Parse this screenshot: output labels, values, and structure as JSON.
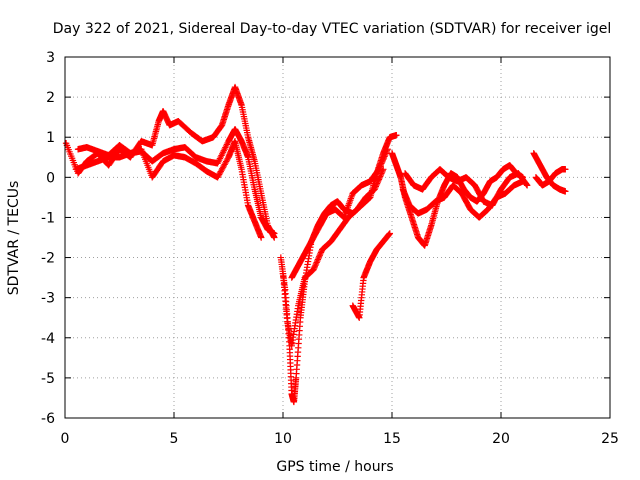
{
  "chart_data": {
    "type": "scatter",
    "title": "Day 322 of 2021, Sidereal Day-to-day VTEC variation (SDTVAR) for receiver igel",
    "xlabel": "GPS time / hours",
    "ylabel": "SDTVAR / TECUs",
    "xlim": [
      0,
      25
    ],
    "ylim": [
      -6,
      3
    ],
    "xticks": [
      0,
      5,
      10,
      15,
      20,
      25
    ],
    "yticks": [
      -6,
      -5,
      -4,
      -3,
      -2,
      -1,
      0,
      1,
      2,
      3
    ],
    "grid": true,
    "marker": "+",
    "color": "#ff0000",
    "series": [
      {
        "points": [
          [
            0.05,
            0.85
          ],
          [
            0.6,
            0.1
          ],
          [
            1.0,
            0.4
          ],
          [
            1.5,
            0.6
          ],
          [
            2.0,
            0.3
          ],
          [
            2.5,
            0.7
          ],
          [
            3.0,
            0.5
          ],
          [
            3.5,
            0.9
          ],
          [
            4.0,
            0.8
          ],
          [
            4.3,
            1.4
          ],
          [
            4.5,
            1.65
          ],
          [
            4.8,
            1.3
          ],
          [
            5.2,
            1.4
          ],
          [
            5.8,
            1.1
          ],
          [
            6.3,
            0.9
          ],
          [
            6.8,
            1.0
          ],
          [
            7.2,
            1.3
          ],
          [
            7.5,
            1.8
          ],
          [
            7.8,
            2.25
          ],
          [
            8.1,
            1.8
          ],
          [
            8.4,
            1.0
          ],
          [
            8.7,
            0.4
          ],
          [
            9.0,
            -0.4
          ],
          [
            9.3,
            -1.2
          ],
          [
            9.6,
            -1.5
          ]
        ]
      },
      {
        "points": [
          [
            0.6,
            0.7
          ],
          [
            1.0,
            0.75
          ],
          [
            1.5,
            0.65
          ],
          [
            2.0,
            0.55
          ],
          [
            2.5,
            0.8
          ],
          [
            3.0,
            0.6
          ],
          [
            3.5,
            0.65
          ],
          [
            4.0,
            0.4
          ],
          [
            4.5,
            0.6
          ],
          [
            5.0,
            0.7
          ],
          [
            5.5,
            0.75
          ],
          [
            6.0,
            0.5
          ],
          [
            6.5,
            0.4
          ],
          [
            7.0,
            0.35
          ],
          [
            7.5,
            0.9
          ],
          [
            7.8,
            1.2
          ],
          [
            8.1,
            0.9
          ],
          [
            8.4,
            0.5
          ],
          [
            8.7,
            -0.3
          ],
          [
            9.0,
            -1.0
          ],
          [
            9.3,
            -1.3
          ],
          [
            9.6,
            -1.4
          ]
        ]
      },
      {
        "points": [
          [
            0.5,
            0.2
          ],
          [
            1.0,
            0.3
          ],
          [
            1.5,
            0.4
          ],
          [
            2.0,
            0.5
          ],
          [
            2.5,
            0.5
          ],
          [
            3.0,
            0.6
          ],
          [
            3.5,
            0.7
          ],
          [
            4.0,
            0.0
          ],
          [
            4.5,
            0.4
          ],
          [
            5.0,
            0.55
          ],
          [
            5.5,
            0.5
          ],
          [
            6.0,
            0.35
          ],
          [
            6.5,
            0.15
          ],
          [
            7.0,
            0.0
          ],
          [
            7.5,
            0.5
          ],
          [
            7.8,
            0.9
          ],
          [
            8.1,
            0.2
          ],
          [
            8.4,
            -0.7
          ],
          [
            8.7,
            -1.1
          ],
          [
            9.0,
            -1.5
          ]
        ]
      },
      {
        "points": [
          [
            10.4,
            -2.5
          ],
          [
            10.7,
            -2.2
          ],
          [
            11.0,
            -1.9
          ],
          [
            11.3,
            -1.6
          ],
          [
            11.6,
            -1.2
          ],
          [
            11.9,
            -0.9
          ],
          [
            12.2,
            -0.7
          ],
          [
            12.5,
            -0.6
          ],
          [
            12.8,
            -0.8
          ],
          [
            13.2,
            -0.9
          ],
          [
            13.6,
            -0.7
          ],
          [
            14.0,
            -0.5
          ],
          [
            14.3,
            0.1
          ],
          [
            14.6,
            0.6
          ],
          [
            14.9,
            1.0
          ],
          [
            15.2,
            1.05
          ]
        ]
      },
      {
        "points": [
          [
            9.9,
            -2.0
          ],
          [
            10.1,
            -2.8
          ],
          [
            10.3,
            -4.2
          ],
          [
            10.4,
            -5.4
          ],
          [
            10.5,
            -5.6
          ],
          [
            10.6,
            -5.0
          ],
          [
            10.8,
            -3.5
          ],
          [
            11.0,
            -2.6
          ],
          [
            11.3,
            -1.6
          ],
          [
            11.7,
            -1.2
          ],
          [
            12.0,
            -0.9
          ],
          [
            12.4,
            -0.8
          ],
          [
            12.8,
            -1.0
          ],
          [
            13.2,
            -0.4
          ],
          [
            13.6,
            -0.2
          ],
          [
            14.0,
            -0.1
          ],
          [
            14.4,
            0.2
          ],
          [
            14.8,
            0.7
          ]
        ]
      },
      {
        "points": [
          [
            10.0,
            -2.4
          ],
          [
            10.2,
            -3.6
          ],
          [
            10.4,
            -4.2
          ],
          [
            10.7,
            -3.2
          ],
          [
            11.0,
            -2.5
          ],
          [
            11.4,
            -2.3
          ],
          [
            11.8,
            -1.8
          ],
          [
            12.2,
            -1.6
          ],
          [
            12.6,
            -1.3
          ],
          [
            13.0,
            -1.0
          ],
          [
            13.4,
            -0.8
          ],
          [
            13.8,
            -0.5
          ],
          [
            14.2,
            -0.3
          ],
          [
            14.6,
            0.2
          ]
        ]
      },
      {
        "points": [
          [
            13.2,
            -3.2
          ],
          [
            13.5,
            -3.5
          ],
          [
            13.7,
            -2.5
          ],
          [
            14.0,
            -2.1
          ],
          [
            14.3,
            -1.8
          ],
          [
            14.6,
            -1.6
          ],
          [
            14.9,
            -1.4
          ]
        ]
      },
      {
        "points": [
          [
            15.0,
            0.6
          ],
          [
            15.2,
            0.3
          ],
          [
            15.4,
            0.0
          ],
          [
            15.6,
            -0.5
          ],
          [
            15.9,
            -1.0
          ],
          [
            16.2,
            -1.5
          ],
          [
            16.5,
            -1.7
          ],
          [
            16.8,
            -1.2
          ],
          [
            17.1,
            -0.6
          ],
          [
            17.4,
            -0.2
          ],
          [
            17.7,
            0.1
          ],
          [
            18.0,
            0.0
          ],
          [
            18.3,
            -0.3
          ],
          [
            18.6,
            -0.5
          ],
          [
            18.9,
            -0.6
          ],
          [
            19.2,
            -0.4
          ],
          [
            19.5,
            -0.1
          ],
          [
            19.8,
            0.0
          ],
          [
            20.1,
            0.2
          ],
          [
            20.4,
            0.3
          ],
          [
            20.7,
            0.1
          ],
          [
            21.0,
            0.0
          ]
        ]
      },
      {
        "points": [
          [
            15.5,
            -0.3
          ],
          [
            15.8,
            -0.7
          ],
          [
            16.2,
            -0.9
          ],
          [
            16.6,
            -0.8
          ],
          [
            17.0,
            -0.6
          ],
          [
            17.4,
            -0.5
          ],
          [
            17.8,
            -0.2
          ],
          [
            18.2,
            -0.4
          ],
          [
            18.6,
            -0.8
          ],
          [
            19.0,
            -1.0
          ],
          [
            19.4,
            -0.8
          ],
          [
            19.8,
            -0.5
          ],
          [
            20.2,
            -0.4
          ],
          [
            20.6,
            -0.2
          ],
          [
            21.0,
            -0.1
          ]
        ]
      },
      {
        "points": [
          [
            15.6,
            0.1
          ],
          [
            16.0,
            -0.2
          ],
          [
            16.4,
            -0.3
          ],
          [
            16.8,
            0.0
          ],
          [
            17.2,
            0.2
          ],
          [
            17.6,
            0.0
          ],
          [
            18.0,
            -0.1
          ],
          [
            18.4,
            0.0
          ],
          [
            18.8,
            -0.2
          ],
          [
            19.2,
            -0.6
          ],
          [
            19.6,
            -0.7
          ],
          [
            20.0,
            -0.3
          ],
          [
            20.4,
            0.0
          ],
          [
            20.8,
            0.1
          ],
          [
            21.2,
            -0.2
          ]
        ]
      },
      {
        "points": [
          [
            21.5,
            0.6
          ],
          [
            21.8,
            0.3
          ],
          [
            22.1,
            0.0
          ],
          [
            22.4,
            -0.2
          ],
          [
            22.7,
            -0.3
          ],
          [
            22.95,
            -0.35
          ]
        ]
      },
      {
        "points": [
          [
            21.6,
            0.0
          ],
          [
            21.9,
            -0.2
          ],
          [
            22.2,
            -0.1
          ],
          [
            22.5,
            0.1
          ],
          [
            22.8,
            0.2
          ],
          [
            22.95,
            0.2
          ]
        ]
      }
    ]
  }
}
